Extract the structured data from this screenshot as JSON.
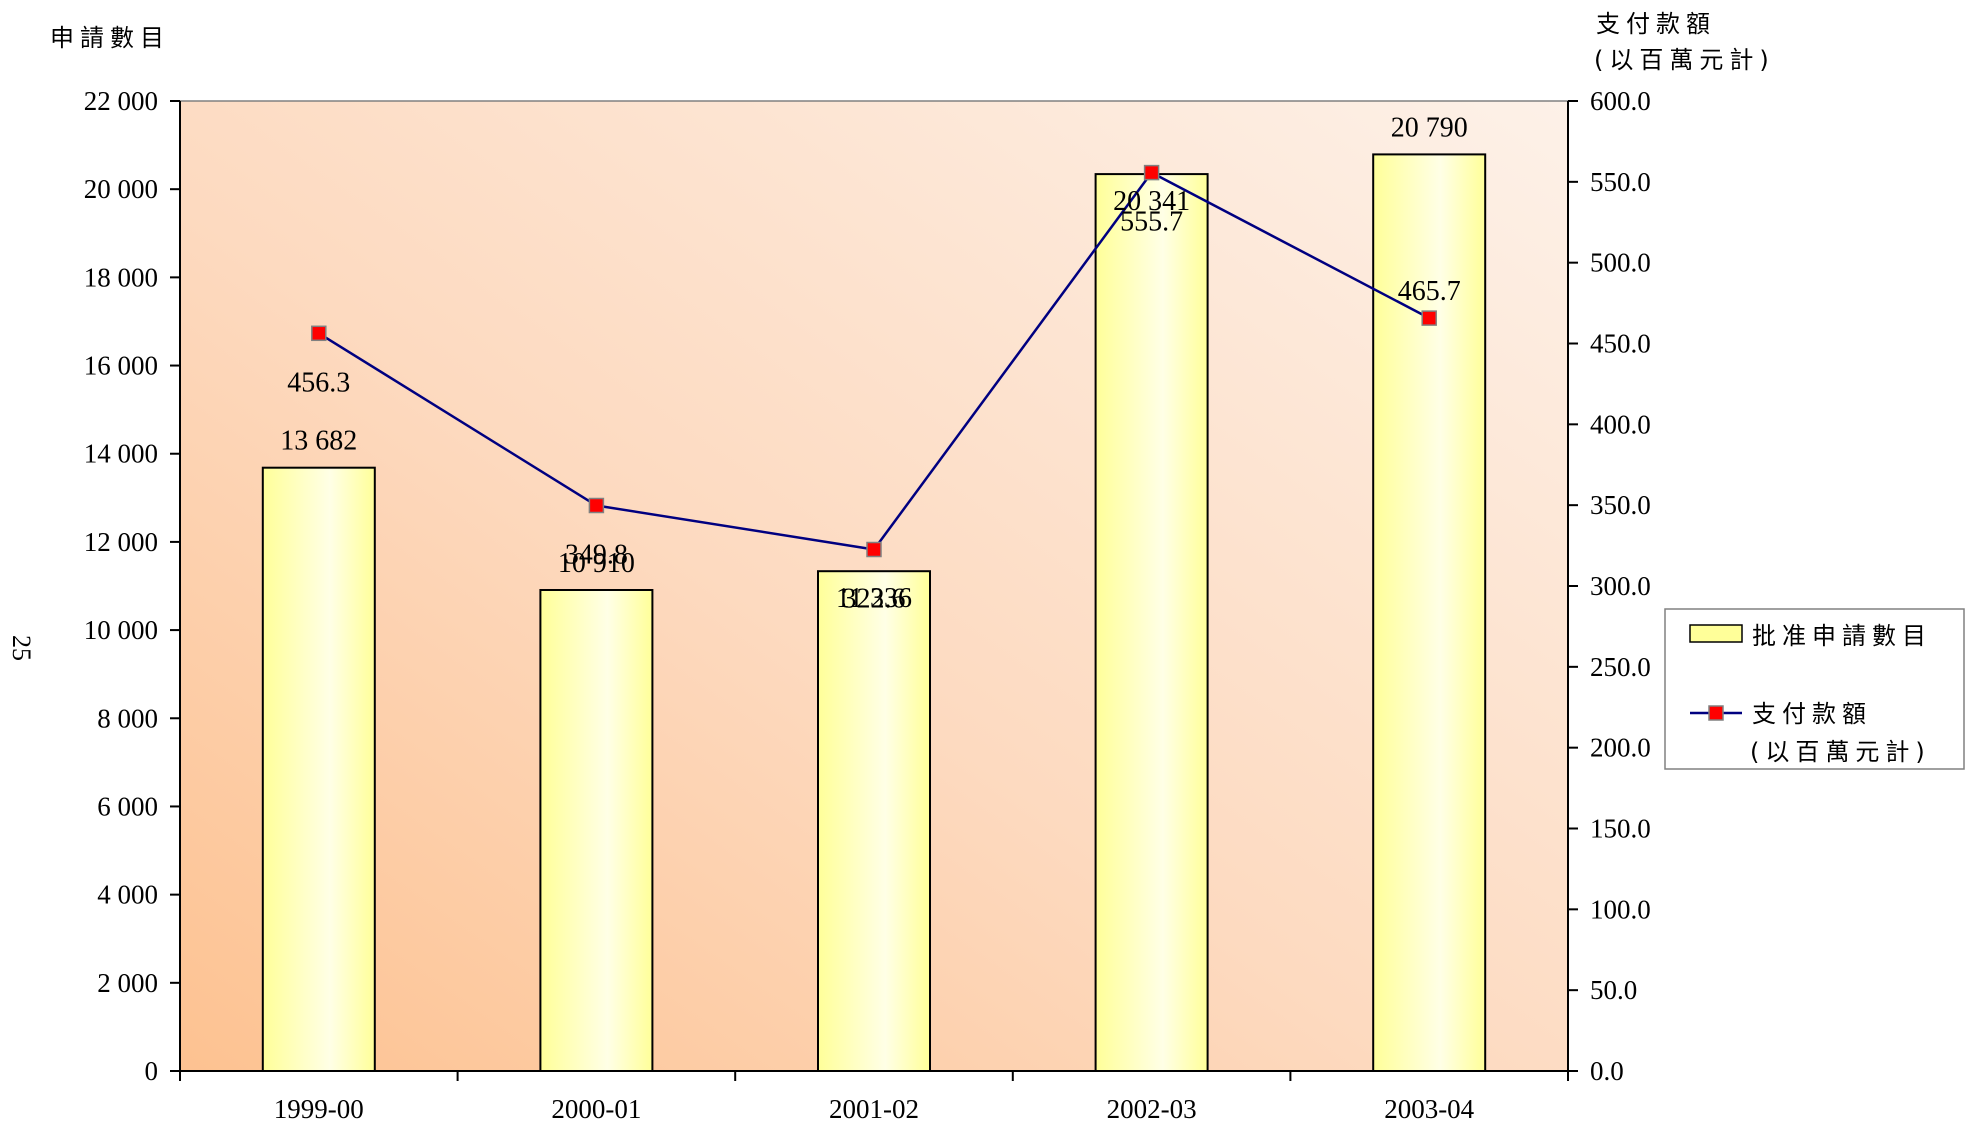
{
  "page_number": "25",
  "chart_data": {
    "type": "bar",
    "categories": [
      "1999-00",
      "2000-01",
      "2001-02",
      "2002-03",
      "2003-04"
    ],
    "series": [
      {
        "name": "批准申請數目",
        "chart_type": "bar",
        "axis": "left",
        "values": [
          13682,
          10910,
          11336,
          20341,
          20790
        ],
        "labels": [
          "13 682",
          "10 910",
          "11 336",
          "20 341",
          "20 790"
        ],
        "color": "#FFFF99"
      },
      {
        "name": "支付款額",
        "name_line2": "(以百萬元計)",
        "chart_type": "line",
        "axis": "right",
        "values": [
          456.3,
          349.8,
          322.6,
          555.7,
          465.7
        ],
        "labels": [
          "456.3",
          "349.8",
          "322.6",
          "555.7",
          "465.7"
        ],
        "color": "#000080",
        "marker_color": "#FF0000"
      }
    ],
    "y_left": {
      "title": "申請數目",
      "range": [
        0,
        22000
      ],
      "ticks": [
        0,
        2000,
        4000,
        6000,
        8000,
        10000,
        12000,
        14000,
        16000,
        18000,
        20000,
        22000
      ],
      "tick_labels": [
        "0",
        "2 000",
        "4 000",
        "6 000",
        "8 000",
        "10 000",
        "12 000",
        "14 000",
        "16 000",
        "18 000",
        "20 000",
        "22 000"
      ]
    },
    "y_right": {
      "title_line1": "支付款額",
      "title_line2": "(以百萬元計)",
      "range": [
        0,
        600
      ],
      "ticks": [
        0,
        50,
        100,
        150,
        200,
        250,
        300,
        350,
        400,
        450,
        500,
        550,
        600
      ],
      "tick_labels": [
        "0.0",
        "50.0",
        "100.0",
        "150.0",
        "200.0",
        "250.0",
        "300.0",
        "350.0",
        "400.0",
        "450.0",
        "500.0",
        "550.0",
        "600.0"
      ]
    },
    "legend": {
      "position": "right",
      "items": [
        "批准申請數目",
        "支付款額",
        "(以百萬元計)"
      ]
    },
    "plot_background": [
      "#FDC79A",
      "#FDF0E6"
    ],
    "grid": false
  }
}
